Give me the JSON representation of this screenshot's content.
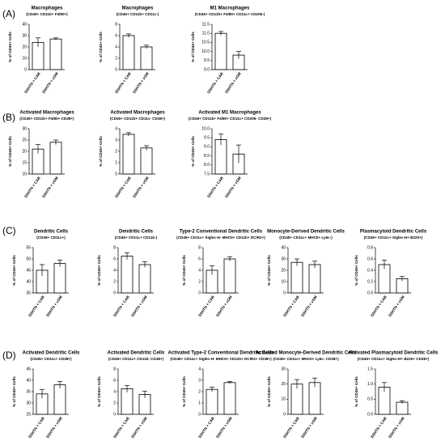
{
  "panels": [
    "(A)",
    "(B)",
    "(C)",
    "(D)"
  ],
  "chart_data": [
    {
      "type": "bar",
      "title": "Macrophages",
      "subtitle": "(CD45+ CD11b+ F4/80+)",
      "ylabel": "% of CD45+ Cells",
      "categories": [
        "SSHTN + CAB",
        "SSHTN + xGM"
      ],
      "values": [
        24,
        27
      ],
      "errors": [
        4,
        1
      ],
      "color": "#ffffff",
      "ylim": [
        0,
        40
      ],
      "yticks": [
        0,
        10,
        20,
        30,
        40
      ]
    },
    {
      "type": "bar",
      "title": "Macrophages",
      "subtitle": "(CD45+ CD11b+ CD11c-)",
      "ylabel": "% of CD45+ Cells",
      "categories": [
        "SSHTN + CAB",
        "SSHTN + xGM"
      ],
      "values": [
        6,
        4
      ],
      "errors": [
        0.3,
        0.3
      ],
      "color": "#ffffff",
      "ylim": [
        0,
        8
      ],
      "yticks": [
        0,
        2,
        4,
        6,
        8
      ]
    },
    {
      "type": "bar",
      "title": "M1 Macrophages",
      "subtitle": "(CD45+ CD11b+ F4/80+ CD11c+ CD206-)",
      "ylabel": "% of CD45+ Cells",
      "categories": [
        "SSHTN + CAB",
        "SSHTN + xGM"
      ],
      "values": [
        11.0,
        9.8
      ],
      "errors": [
        0.1,
        0.2
      ],
      "color": "#ffffff",
      "ylim": [
        9.0,
        11.5
      ],
      "yticks": [
        {
          "value": 9,
          "label": "9.0"
        },
        9.5,
        {
          "value": 10,
          "label": "10.0"
        },
        10.5,
        {
          "value": 11,
          "label": "11.0"
        },
        11.5
      ]
    },
    {
      "type": "bar",
      "title": "Activated Macrophages",
      "subtitle": "(CD45+ CD11b+ F4/80+ CD38+)",
      "ylabel": "% of CD45+ Cells",
      "categories": [
        "SSHTN + CAB",
        "SSHTN + xGM"
      ],
      "values": [
        21,
        24
      ],
      "errors": [
        2,
        1
      ],
      "color": "#ffffff",
      "ylim": [
        10,
        30
      ],
      "yticks": [
        10,
        15,
        20,
        25,
        30
      ]
    },
    {
      "type": "bar",
      "title": "Activated Macrophages",
      "subtitle": "(CD45+ CD11b+ CD11c- CD38+)",
      "ylabel": "% of CD45+ Cells",
      "categories": [
        "SSHTN + CAB",
        "SSHTN + xGM"
      ],
      "values": [
        3.5,
        2.3
      ],
      "errors": [
        0.15,
        0.2
      ],
      "color": "#ffffff",
      "ylim": [
        0,
        4
      ],
      "yticks": [
        0,
        1,
        2,
        3,
        4
      ]
    },
    {
      "type": "bar",
      "title": "Activated M1 Macrophages",
      "subtitle": "(CD45+ CD11b+ F4/80+ CD11c+ CD206- CD38+)",
      "ylabel": "% of CD45+ Cells",
      "categories": [
        "SSHTN + CAB",
        "SSHTN + xGM"
      ],
      "values": [
        9.4,
        8.6
      ],
      "errors": [
        0.3,
        0.5
      ],
      "color": "#ffffff",
      "ylim": [
        7.5,
        10.0
      ],
      "yticks": [
        7.5,
        {
          "value": 8,
          "label": "8.0"
        },
        8.5,
        {
          "value": 9,
          "label": "9.0"
        },
        9.5,
        {
          "value": 10,
          "label": "10.0"
        }
      ]
    },
    {
      "type": "bar",
      "title": "Dendritic Cells",
      "subtitle": "(CD45+ CD11c+)",
      "ylabel": "% of CD45+ Cells",
      "categories": [
        "SSHTN + CAB",
        "SSHTN + xGM"
      ],
      "values": [
        45,
        48
      ],
      "errors": [
        2.5,
        1.5
      ],
      "color": "#ffffff",
      "ylim": [
        35,
        55
      ],
      "yticks": [
        35,
        40,
        45,
        50,
        55
      ]
    },
    {
      "type": "bar",
      "title": "Dendritic Cells",
      "subtitle": "(CD45+ CD11c+ CD11b-)",
      "ylabel": "% of CD45+ Cells",
      "categories": [
        "SSHTN + CAB",
        "SSHTN + xGM"
      ],
      "values": [
        6.5,
        5
      ],
      "errors": [
        0.6,
        0.5
      ],
      "color": "#ffffff",
      "ylim": [
        0,
        8
      ],
      "yticks": [
        0,
        2,
        4,
        6,
        8
      ]
    },
    {
      "type": "bar",
      "title": "Type-2 Conventional Dendritic Cells",
      "subtitle": "(CD45+ CD11c+ Siglec-H- MHCII+ CD11b+ DCIR2+)",
      "ylabel": "% of CD45+ Cells",
      "categories": [
        "SSHTN + CAB",
        "SSHTN + xGM"
      ],
      "values": [
        4,
        6
      ],
      "errors": [
        0.8,
        0.4
      ],
      "color": "#ffffff",
      "ylim": [
        0,
        8
      ],
      "yticks": [
        0,
        2,
        4,
        6,
        8
      ]
    },
    {
      "type": "bar",
      "title": "Monocyte-Derived Dendritic Cells",
      "subtitle": "(CD45+ CD11c+ MHCII+ Ly6c-)",
      "ylabel": "% of CD45+ Cells",
      "categories": [
        "SSHTN + CAB",
        "SSHTN + xGM"
      ],
      "values": [
        27,
        25
      ],
      "errors": [
        3,
        3
      ],
      "color": "#ffffff",
      "ylim": [
        0,
        40
      ],
      "yticks": [
        0,
        10,
        20,
        30,
        40
      ]
    },
    {
      "type": "bar",
      "title": "Plasmacytoid Dendritic Cells",
      "subtitle": "(CD45+ CD11c+ Siglec-H+ B220+)",
      "ylabel": "% of CD45+ Cells",
      "categories": [
        "SSHTN + CAB",
        "SSHTN + xGM"
      ],
      "values": [
        0.5,
        0.25
      ],
      "errors": [
        0.08,
        0.04
      ],
      "color": "#ffffff",
      "ylim": [
        0,
        0.8
      ],
      "yticks": [
        {
          "value": 0,
          "label": "0.0"
        },
        0.2,
        0.4,
        0.6,
        0.8
      ]
    },
    {
      "type": "bar",
      "title": "Activated Dendritic Cells",
      "subtitle": "(CD45+ CD11c+ CD38+)",
      "ylabel": "% of CD45+ Cells",
      "categories": [
        "SSHTN + CAB",
        "SSHTN + xGM"
      ],
      "values": [
        34,
        38
      ],
      "errors": [
        2,
        1.5
      ],
      "color": "#ffffff",
      "ylim": [
        25,
        45
      ],
      "yticks": [
        25,
        30,
        35,
        40,
        45
      ]
    },
    {
      "type": "bar",
      "title": "Activated Dendritic Cells",
      "subtitle": "(CD45+ CD11c+ CD11b- CD38+)",
      "ylabel": "% of CD45+ Cells",
      "categories": [
        "SSHTN + CAB",
        "SSHTN + xGM"
      ],
      "values": [
        4.5,
        3.5
      ],
      "errors": [
        0.6,
        0.6
      ],
      "color": "#ffffff",
      "ylim": [
        0,
        8
      ],
      "yticks": [
        0,
        2,
        4,
        6,
        8
      ]
    },
    {
      "type": "bar",
      "title": "Activated Type-2 Conventional Dendritic Cells",
      "subtitle": "(CD45+ CD11c+ Siglec-H- MHCII+ CD11b+ DCIR2+ CD38+)",
      "ylabel": "% of CD45+ Cells",
      "categories": [
        "SSHTN + CAB",
        "SSHTN + xGM"
      ],
      "values": [
        2.2,
        2.8
      ],
      "errors": [
        0.2,
        0.1
      ],
      "color": "#ffffff",
      "ylim": [
        0,
        4
      ],
      "yticks": [
        0,
        1,
        2,
        3,
        4
      ]
    },
    {
      "type": "bar",
      "title": "Activated Monocyte-Derived Dendritic Cells",
      "subtitle": "(CD45+ CD11c+ MHCII+ Ly6c- CD38+)",
      "ylabel": "% of CD45+ Cells",
      "categories": [
        "SSHTN + CAB",
        "SSHTN + xGM"
      ],
      "values": [
        20,
        21
      ],
      "errors": [
        3,
        3
      ],
      "color": "#ffffff",
      "ylim": [
        0,
        30
      ],
      "yticks": [
        0,
        10,
        20,
        30
      ]
    },
    {
      "type": "bar",
      "title": "Activated Plasmacytoid Dendritic Cells",
      "subtitle": "(CD45+ CD11c+ Siglec-H+ B220+ CD38+)",
      "ylabel": "% of CD45+ Cells",
      "categories": [
        "SSHTN + CAB",
        "SSHTN + xGM"
      ],
      "values": [
        0.9,
        0.4
      ],
      "errors": [
        0.15,
        0.05
      ],
      "color": "#ffffff",
      "ylim": [
        0,
        1.5
      ],
      "yticks": [
        {
          "value": 0,
          "label": "0.0"
        },
        0.5,
        {
          "value": 1,
          "label": "1.0"
        },
        1.5
      ]
    }
  ]
}
